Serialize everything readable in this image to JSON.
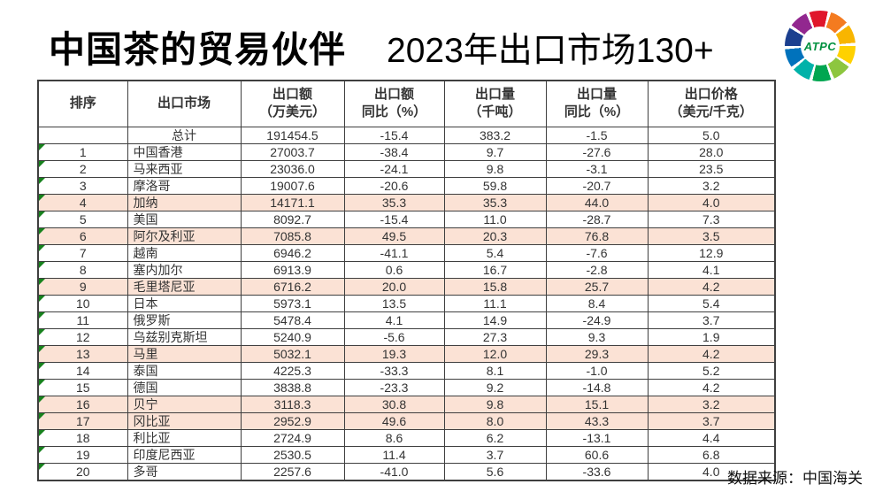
{
  "title": {
    "main": "中国茶的贸易伙伴",
    "sub": "2023年出口市场130+"
  },
  "logo": {
    "text": "ATPC"
  },
  "source": "数据来源：中国海关",
  "chart_data": {
    "type": "table",
    "title": "中国茶的贸易伙伴 2023年出口市场130+",
    "columns": [
      {
        "label": "排序",
        "sub": ""
      },
      {
        "label": "出口市场",
        "sub": ""
      },
      {
        "label": "出口额",
        "sub": "（万美元）"
      },
      {
        "label": "出口额",
        "sub": "同比（%）"
      },
      {
        "label": "出口量",
        "sub": "（千吨）"
      },
      {
        "label": "出口量",
        "sub": "同比（%）"
      },
      {
        "label": "出口价格",
        "sub": "（美元/千克）"
      }
    ],
    "rows": [
      {
        "rank": "",
        "market": "总计",
        "export_value": 191454.5,
        "value_yoy": -15.4,
        "export_volume": 383.2,
        "volume_yoy": -1.5,
        "price": 5.0,
        "highlight": false
      },
      {
        "rank": "1",
        "market": "中国香港",
        "export_value": 27003.7,
        "value_yoy": -38.4,
        "export_volume": 9.7,
        "volume_yoy": -27.6,
        "price": 28.0,
        "highlight": false
      },
      {
        "rank": "2",
        "market": "马来西亚",
        "export_value": 23036.0,
        "value_yoy": -24.1,
        "export_volume": 9.8,
        "volume_yoy": -3.1,
        "price": 23.5,
        "highlight": false
      },
      {
        "rank": "3",
        "market": "摩洛哥",
        "export_value": 19007.6,
        "value_yoy": -20.6,
        "export_volume": 59.8,
        "volume_yoy": -20.7,
        "price": 3.2,
        "highlight": false
      },
      {
        "rank": "4",
        "market": "加纳",
        "export_value": 14171.1,
        "value_yoy": 35.3,
        "export_volume": 35.3,
        "volume_yoy": 44.0,
        "price": 4.0,
        "highlight": true
      },
      {
        "rank": "5",
        "market": "美国",
        "export_value": 8092.7,
        "value_yoy": -15.4,
        "export_volume": 11.0,
        "volume_yoy": -28.7,
        "price": 7.3,
        "highlight": false
      },
      {
        "rank": "6",
        "market": "阿尔及利亚",
        "export_value": 7085.8,
        "value_yoy": 49.5,
        "export_volume": 20.3,
        "volume_yoy": 76.8,
        "price": 3.5,
        "highlight": true
      },
      {
        "rank": "7",
        "market": "越南",
        "export_value": 6946.2,
        "value_yoy": -41.1,
        "export_volume": 5.4,
        "volume_yoy": -7.6,
        "price": 12.9,
        "highlight": false
      },
      {
        "rank": "8",
        "market": "塞内加尔",
        "export_value": 6913.9,
        "value_yoy": 0.6,
        "export_volume": 16.7,
        "volume_yoy": -2.8,
        "price": 4.1,
        "highlight": false
      },
      {
        "rank": "9",
        "market": "毛里塔尼亚",
        "export_value": 6716.2,
        "value_yoy": 20.0,
        "export_volume": 15.8,
        "volume_yoy": 25.7,
        "price": 4.2,
        "highlight": true
      },
      {
        "rank": "10",
        "market": "日本",
        "export_value": 5973.1,
        "value_yoy": 13.5,
        "export_volume": 11.1,
        "volume_yoy": 8.4,
        "price": 5.4,
        "highlight": false
      },
      {
        "rank": "11",
        "market": "俄罗斯",
        "export_value": 5478.4,
        "value_yoy": 4.1,
        "export_volume": 14.9,
        "volume_yoy": -24.9,
        "price": 3.7,
        "highlight": false
      },
      {
        "rank": "12",
        "market": "乌兹别克斯坦",
        "export_value": 5240.9,
        "value_yoy": -5.6,
        "export_volume": 27.3,
        "volume_yoy": 9.3,
        "price": 1.9,
        "highlight": false
      },
      {
        "rank": "13",
        "market": "马里",
        "export_value": 5032.1,
        "value_yoy": 19.3,
        "export_volume": 12.0,
        "volume_yoy": 29.3,
        "price": 4.2,
        "highlight": true
      },
      {
        "rank": "14",
        "market": "泰国",
        "export_value": 4225.3,
        "value_yoy": -33.3,
        "export_volume": 8.1,
        "volume_yoy": -1.0,
        "price": 5.2,
        "highlight": false
      },
      {
        "rank": "15",
        "market": "德国",
        "export_value": 3838.8,
        "value_yoy": -23.3,
        "export_volume": 9.2,
        "volume_yoy": -14.8,
        "price": 4.2,
        "highlight": false
      },
      {
        "rank": "16",
        "market": "贝宁",
        "export_value": 3118.3,
        "value_yoy": 30.8,
        "export_volume": 9.8,
        "volume_yoy": 15.1,
        "price": 3.2,
        "highlight": true
      },
      {
        "rank": "17",
        "market": "冈比亚",
        "export_value": 2952.9,
        "value_yoy": 49.6,
        "export_volume": 8.0,
        "volume_yoy": 43.3,
        "price": 3.7,
        "highlight": true
      },
      {
        "rank": "18",
        "market": "利比亚",
        "export_value": 2724.9,
        "value_yoy": 8.6,
        "export_volume": 6.2,
        "volume_yoy": -13.1,
        "price": 4.4,
        "highlight": false
      },
      {
        "rank": "19",
        "market": "印度尼西亚",
        "export_value": 2530.5,
        "value_yoy": 11.4,
        "export_volume": 3.7,
        "volume_yoy": 60.6,
        "price": 6.8,
        "highlight": false
      },
      {
        "rank": "20",
        "market": "多哥",
        "export_value": 2257.6,
        "value_yoy": -41.0,
        "export_volume": 5.6,
        "volume_yoy": -33.6,
        "price": 4.0,
        "highlight": false
      }
    ],
    "highlight_color": "#fbe2d5",
    "layout": {
      "grid": true,
      "header_rows": 1,
      "total_row_first": true
    }
  }
}
